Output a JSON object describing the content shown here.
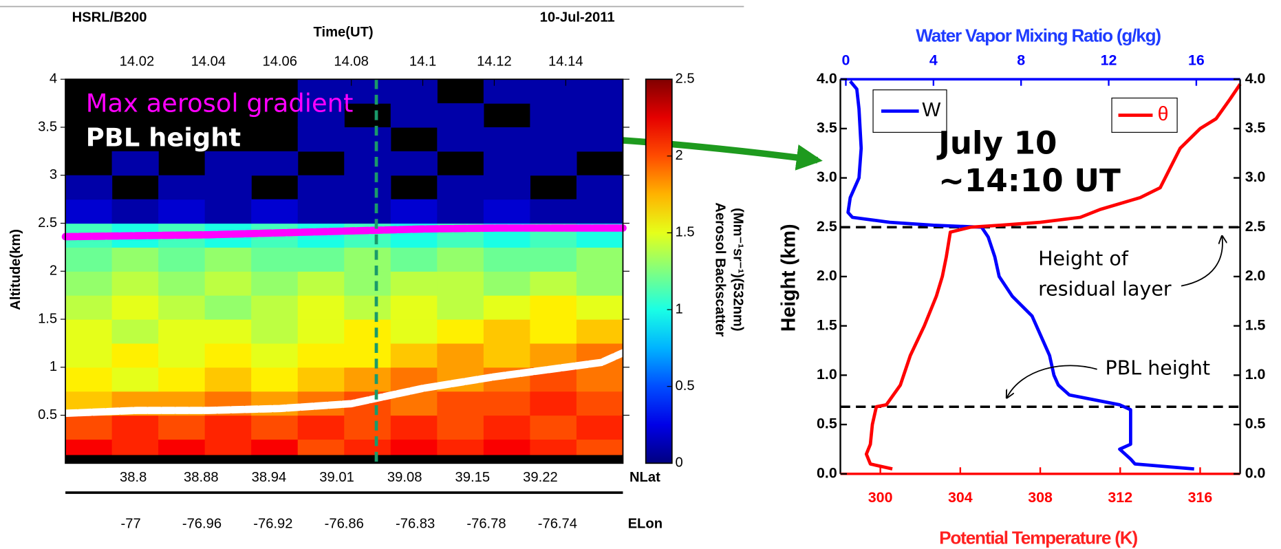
{
  "chart_data": [
    {
      "type": "heatmap",
      "title": "HSRL/B200",
      "date": "10-Jul-2011",
      "xlabel": "Time(UT)",
      "ylabel": "Altitude(km)",
      "xlim": [
        14.0,
        14.156
      ],
      "xticks": [
        14.02,
        14.04,
        14.06,
        14.08,
        14.1,
        14.12,
        14.14
      ],
      "ylim": [
        0,
        4
      ],
      "yticks": [
        0.5,
        1,
        1.5,
        2,
        2.5,
        3,
        3.5,
        4
      ],
      "xbins": [
        14.0,
        14.013,
        14.026,
        14.039,
        14.052,
        14.065,
        14.078,
        14.091,
        14.104,
        14.117,
        14.13,
        14.143,
        14.156
      ],
      "ybins": [
        0,
        0.25,
        0.5,
        0.75,
        1,
        1.25,
        1.5,
        1.75,
        2,
        2.25,
        2.5,
        2.75,
        3,
        3.25,
        3.5,
        3.75,
        4
      ],
      "z": [
        [
          2.2,
          2.1,
          2.2,
          2.1,
          2.2,
          2.0,
          2.1,
          2.2,
          2.1,
          2.2,
          2.1,
          2.0
        ],
        [
          2.0,
          2.1,
          2.0,
          2.1,
          2.0,
          2.1,
          2.0,
          2.1,
          2.0,
          2.1,
          2.0,
          2.1
        ],
        [
          1.7,
          1.8,
          1.8,
          1.9,
          1.8,
          1.9,
          2.0,
          1.9,
          2.0,
          2.0,
          2.1,
          2.0
        ],
        [
          1.6,
          1.5,
          1.6,
          1.7,
          1.6,
          1.7,
          1.8,
          1.9,
          1.8,
          1.9,
          2.0,
          1.9
        ],
        [
          1.5,
          1.6,
          1.5,
          1.6,
          1.5,
          1.6,
          1.6,
          1.7,
          1.8,
          1.7,
          1.8,
          1.9
        ],
        [
          1.5,
          1.4,
          1.5,
          1.5,
          1.4,
          1.5,
          1.6,
          1.5,
          1.6,
          1.7,
          1.6,
          1.7
        ],
        [
          1.4,
          1.5,
          1.4,
          1.3,
          1.4,
          1.5,
          1.4,
          1.5,
          1.4,
          1.5,
          1.6,
          1.5
        ],
        [
          1.3,
          1.4,
          1.3,
          1.4,
          1.3,
          1.4,
          1.3,
          1.4,
          1.4,
          1.3,
          1.4,
          1.3
        ],
        [
          1.2,
          1.3,
          1.2,
          1.3,
          1.2,
          1.2,
          1.3,
          1.2,
          1.3,
          1.2,
          1.2,
          1.3
        ],
        [
          1.1,
          1.0,
          1.1,
          1.0,
          1.1,
          1.0,
          1.1,
          1.0,
          1.1,
          1.0,
          1.1,
          1.0
        ],
        [
          0.2,
          0.1,
          0.2,
          0.1,
          0.2,
          0.1,
          0.1,
          0.2,
          0.1,
          0.2,
          0.1,
          0.1
        ],
        [
          0.1,
          null,
          0.1,
          0.1,
          null,
          0.1,
          0.1,
          null,
          0.1,
          0.1,
          null,
          0.1
        ],
        [
          null,
          0.1,
          null,
          0.1,
          0.1,
          null,
          0.1,
          0.1,
          null,
          0.1,
          0.1,
          null
        ],
        [
          null,
          null,
          null,
          null,
          null,
          0.1,
          0.1,
          null,
          0.1,
          0.1,
          0.1,
          0.1
        ],
        [
          null,
          null,
          null,
          null,
          null,
          0.1,
          null,
          0.1,
          0.1,
          null,
          0.1,
          0.1
        ],
        [
          null,
          null,
          null,
          null,
          null,
          0.1,
          0.1,
          0.1,
          null,
          0.1,
          0.1,
          0.1
        ]
      ],
      "colorbar": {
        "label_lines": [
          "Aerosol Backscatter",
          "(Mm⁻¹sr⁻¹)(532nm)"
        ],
        "lim": [
          0,
          2.5
        ],
        "ticks": [
          0,
          0.5,
          1,
          1.5,
          2,
          2.5
        ],
        "colormap": "jet"
      },
      "lat_label": "NLat",
      "lat_ticks": [
        38.8,
        38.88,
        38.94,
        39.01,
        39.08,
        39.15,
        39.22
      ],
      "lon_label": "ELon",
      "lon_ticks": [
        -77,
        -76.96,
        -76.92,
        -76.86,
        -76.83,
        -76.78,
        -76.74
      ],
      "lines": [
        {
          "name": "Max aerosol gradient",
          "color": "#ff00ff",
          "x": [
            14.0,
            14.02,
            14.04,
            14.06,
            14.08,
            14.1,
            14.12,
            14.14,
            14.156
          ],
          "values": [
            2.36,
            2.37,
            2.38,
            2.4,
            2.42,
            2.44,
            2.45,
            2.45,
            2.45
          ]
        },
        {
          "name": "PBL height",
          "color": "#ffffff",
          "x": [
            14.0,
            14.02,
            14.04,
            14.06,
            14.08,
            14.09,
            14.1,
            14.12,
            14.14,
            14.15,
            14.156
          ],
          "values": [
            0.52,
            0.55,
            0.55,
            0.57,
            0.62,
            0.7,
            0.78,
            0.9,
            1.0,
            1.05,
            1.15
          ]
        }
      ],
      "marker_time": 14.087,
      "marker_color": "#1a9a6a"
    },
    {
      "type": "profile",
      "xlabel": "Potential Temperature (K)",
      "x2label": "Water Vapor Mixing Ratio (g/kg)",
      "ylabel": "Height (km)",
      "xlim": [
        298,
        318
      ],
      "xticks": [
        300,
        304,
        308,
        312,
        316
      ],
      "x2lim": [
        -0.25,
        18
      ],
      "x2ticks": [
        0,
        4,
        8,
        12,
        16
      ],
      "ylim": [
        0,
        4
      ],
      "yticks": [
        {
          "value": 0,
          "label": "0.0"
        },
        {
          "value": 0.5,
          "label": "0.5"
        },
        {
          "value": 1,
          "label": "1.0"
        },
        {
          "value": 1.5,
          "label": "1.5"
        },
        {
          "value": 2,
          "label": "2.0"
        },
        {
          "value": 2.5,
          "label": "2.5"
        },
        {
          "value": 3,
          "label": "3.0"
        },
        {
          "value": 3.5,
          "label": "3.5"
        },
        {
          "value": 4,
          "label": "4.0"
        }
      ],
      "hlines": [
        2.5,
        0.68
      ],
      "series": [
        {
          "name": "W",
          "color": "#0000ff",
          "axis": "x2",
          "x": [
            0.2,
            0.5,
            0.6,
            0.7,
            0.6,
            0.2,
            0.1,
            0.3,
            2,
            4,
            6.2,
            6.5,
            6.8,
            7.0,
            7.6,
            8.5,
            8.9,
            9.3,
            9.5,
            9.7,
            10.2,
            12.5,
            13,
            13,
            13,
            12.5,
            13.0,
            13.2,
            15.9
          ],
          "y": [
            3.98,
            3.9,
            3.7,
            3.3,
            3.0,
            2.8,
            2.65,
            2.6,
            2.55,
            2.52,
            2.5,
            2.4,
            2.2,
            2.0,
            1.8,
            1.6,
            1.4,
            1.2,
            1.0,
            0.9,
            0.8,
            0.7,
            0.65,
            0.5,
            0.3,
            0.25,
            0.15,
            0.1,
            0.05
          ]
        },
        {
          "name": "θ",
          "color": "#ff0000",
          "axis": "x",
          "x": [
            300.6,
            299.5,
            299.3,
            299.5,
            299.6,
            299.8,
            300.3,
            301.0,
            301.5,
            302.2,
            302.8,
            303.1,
            303.3,
            303.5,
            304.5,
            306,
            308,
            310,
            311,
            313,
            314,
            314.5,
            315,
            316,
            316.8,
            317.5,
            318
          ],
          "y": [
            0.05,
            0.1,
            0.2,
            0.3,
            0.5,
            0.68,
            0.7,
            0.9,
            1.2,
            1.5,
            1.8,
            2.0,
            2.2,
            2.45,
            2.5,
            2.52,
            2.55,
            2.6,
            2.68,
            2.8,
            2.9,
            3.1,
            3.3,
            3.5,
            3.6,
            3.8,
            3.95
          ]
        }
      ],
      "annotation_lines": [
        "July 10",
        "~14:10 UT"
      ],
      "residual_label_lines": [
        "Height of",
        "residual layer"
      ],
      "pbl_label": "PBL height"
    }
  ]
}
